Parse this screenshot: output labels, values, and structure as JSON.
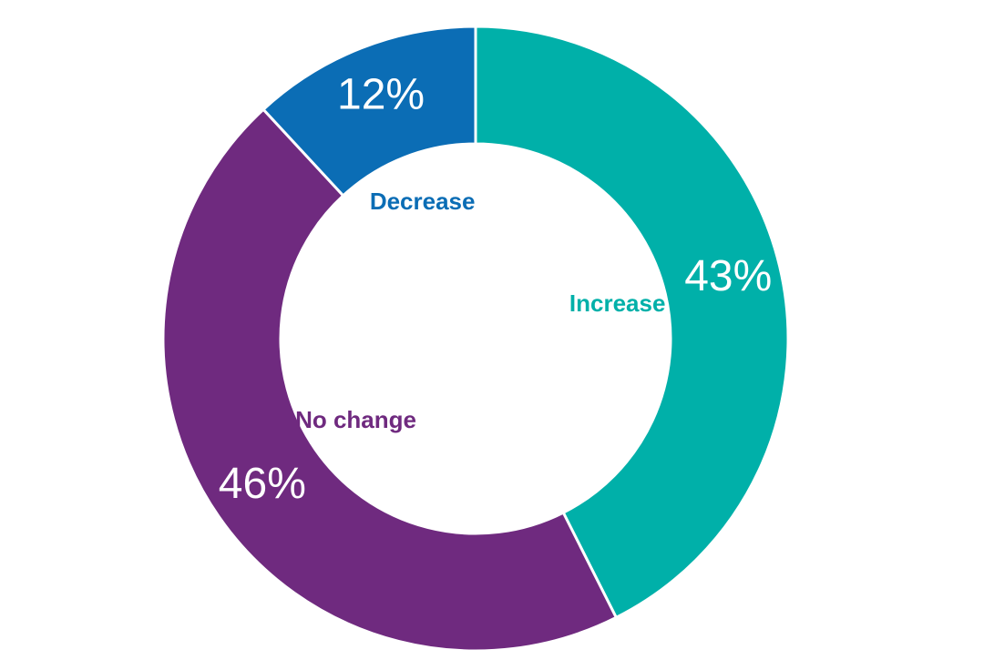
{
  "chart_data": {
    "type": "donut",
    "categories": [
      "Increase",
      "No change",
      "Decrease"
    ],
    "values": [
      43,
      46,
      12
    ],
    "value_labels": [
      "43%",
      "46%",
      "12%"
    ],
    "colors": [
      "#00b0a9",
      "#6f2a7f",
      "#0b6db5"
    ]
  }
}
